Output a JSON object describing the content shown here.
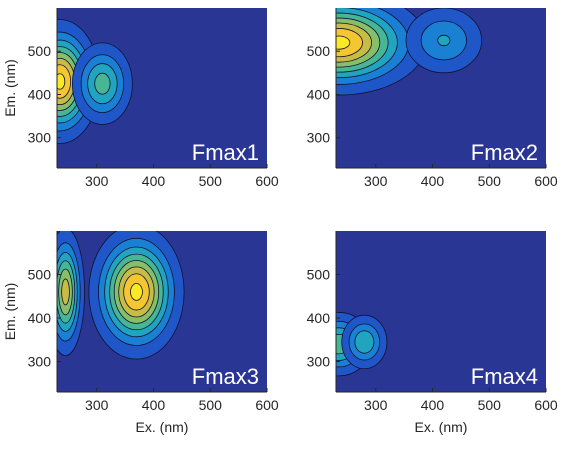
{
  "chart_data": [
    {
      "type": "heatmap",
      "title": "Fmax1",
      "xlabel": "",
      "ylabel": "Em. (nm)",
      "x_ticks": [
        "300",
        "400",
        "500",
        "600"
      ],
      "y_ticks": [
        "300",
        "400",
        "500"
      ],
      "xlim": [
        230,
        600
      ],
      "ylim": [
        230,
        600
      ],
      "peaks": [
        {
          "ex": 235,
          "em": 430,
          "intensity": 1.0,
          "sx": 32,
          "sy": 65
        },
        {
          "ex": 310,
          "em": 425,
          "intensity": 0.52,
          "sx": 28,
          "sy": 50
        }
      ]
    },
    {
      "type": "heatmap",
      "title": "Fmax2",
      "xlabel": "",
      "ylabel": "",
      "x_ticks": [
        "300",
        "400",
        "500",
        "600"
      ],
      "y_ticks": [
        "300",
        "400",
        "500"
      ],
      "xlim": [
        230,
        600
      ],
      "ylim": [
        230,
        600
      ],
      "peaks": [
        {
          "ex": 235,
          "em": 520,
          "intensity": 1.0,
          "sx": 70,
          "sy": 55
        },
        {
          "ex": 420,
          "em": 525,
          "intensity": 0.35,
          "sx": 40,
          "sy": 45
        }
      ]
    },
    {
      "type": "heatmap",
      "title": "Fmax3",
      "xlabel": "Ex. (nm)",
      "ylabel": "Em. (nm)",
      "x_ticks": [
        "300",
        "400",
        "500",
        "600"
      ],
      "y_ticks": [
        "300",
        "400",
        "500"
      ],
      "xlim": [
        230,
        600
      ],
      "ylim": [
        230,
        600
      ],
      "peaks": [
        {
          "ex": 245,
          "em": 460,
          "intensity": 0.78,
          "sx": 16,
          "sy": 70
        },
        {
          "ex": 370,
          "em": 460,
          "intensity": 1.0,
          "sx": 38,
          "sy": 70
        }
      ]
    },
    {
      "type": "heatmap",
      "title": "Fmax4",
      "xlabel": "Ex. (nm)",
      "ylabel": "",
      "x_ticks": [
        "300",
        "400",
        "500",
        "600"
      ],
      "y_ticks": [
        "300",
        "400",
        "500"
      ],
      "xlim": [
        230,
        600
      ],
      "ylim": [
        230,
        600
      ],
      "peaks": [
        {
          "ex": 235,
          "em": 340,
          "intensity": 0.55,
          "sx": 30,
          "sy": 38
        },
        {
          "ex": 280,
          "em": 345,
          "intensity": 0.45,
          "sx": 22,
          "sy": 34
        }
      ]
    }
  ],
  "colors": {
    "background": "#2a3694",
    "levels": [
      "#2a3694",
      "#1f57c8",
      "#1a80d4",
      "#21a4bf",
      "#46b694",
      "#86bf68",
      "#c7bd45",
      "#f3c632",
      "#f9ea24"
    ],
    "contour_line": "#111133"
  }
}
